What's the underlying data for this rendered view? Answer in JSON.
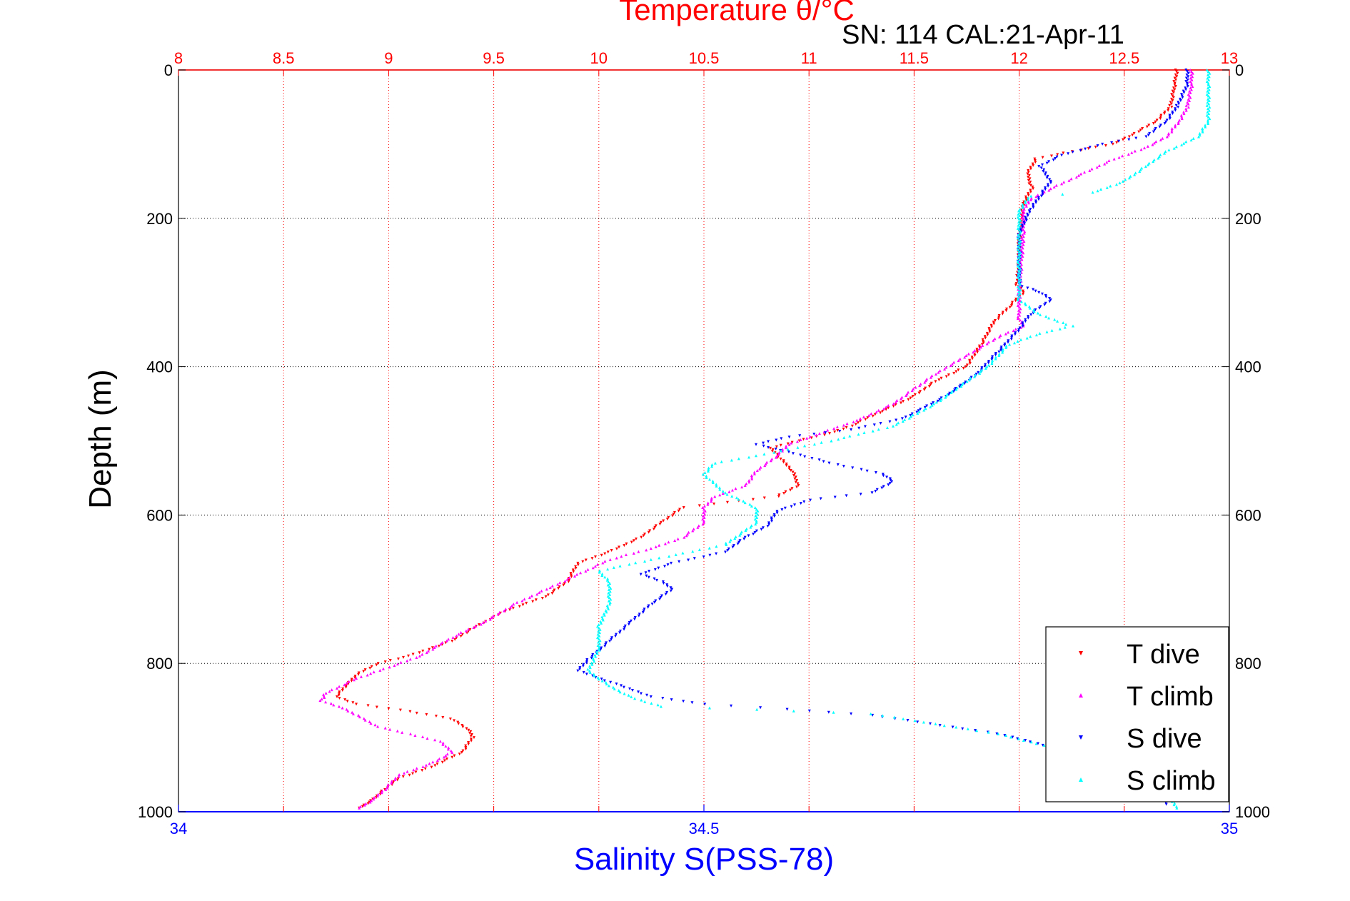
{
  "chart_data": {
    "type": "scatter",
    "title": "Temperature θ/°C",
    "subtitle": "SN: 114  CAL:21-Apr-11",
    "xlabel": "Salinity S(PSS-78)",
    "ylabel": "Depth (m)",
    "temperature_axis": {
      "range": [
        8,
        13
      ],
      "ticks": [
        "8",
        "8.5",
        "9",
        "9.5",
        "10",
        "10.5",
        "11",
        "11.5",
        "12",
        "12.5",
        "13"
      ],
      "color": "#ff0000"
    },
    "salinity_axis": {
      "range": [
        34,
        35
      ],
      "ticks": [
        "34",
        "34.5",
        "35"
      ],
      "color": "#0000ff"
    },
    "depth_axis": {
      "range": [
        0,
        1000
      ],
      "inverted": true,
      "ticks": [
        "0",
        "200",
        "400",
        "600",
        "800",
        "1000"
      ]
    },
    "grid": true,
    "legend_position": "bottom-right",
    "series": [
      {
        "name": "T dive",
        "axis": "temperature",
        "color": "#ff0000",
        "marker": "triangle-down",
        "points": [
          [
            12.75,
            0
          ],
          [
            12.74,
            20
          ],
          [
            12.72,
            50
          ],
          [
            12.65,
            70
          ],
          [
            12.52,
            90
          ],
          [
            12.45,
            100
          ],
          [
            12.25,
            110
          ],
          [
            12.08,
            120
          ],
          [
            12.04,
            140
          ],
          [
            12.06,
            160
          ],
          [
            12.02,
            180
          ],
          [
            12.01,
            200
          ],
          [
            12.0,
            230
          ],
          [
            12.0,
            260
          ],
          [
            11.99,
            290
          ],
          [
            12.02,
            300
          ],
          [
            11.95,
            320
          ],
          [
            11.88,
            340
          ],
          [
            11.82,
            370
          ],
          [
            11.75,
            400
          ],
          [
            11.6,
            420
          ],
          [
            11.5,
            440
          ],
          [
            11.35,
            460
          ],
          [
            11.2,
            480
          ],
          [
            11.1,
            490
          ],
          [
            10.95,
            500
          ],
          [
            10.82,
            510
          ],
          [
            10.85,
            520
          ],
          [
            10.92,
            540
          ],
          [
            10.95,
            560
          ],
          [
            10.85,
            575
          ],
          [
            10.55,
            585
          ],
          [
            10.4,
            590
          ],
          [
            10.3,
            610
          ],
          [
            10.2,
            630
          ],
          [
            10.05,
            650
          ],
          [
            9.9,
            665
          ],
          [
            9.85,
            690
          ],
          [
            9.75,
            710
          ],
          [
            9.55,
            730
          ],
          [
            9.42,
            750
          ],
          [
            9.3,
            770
          ],
          [
            9.1,
            790
          ],
          [
            8.95,
            800
          ],
          [
            8.85,
            815
          ],
          [
            8.8,
            830
          ],
          [
            8.75,
            845
          ],
          [
            8.85,
            855
          ],
          [
            9.1,
            865
          ],
          [
            9.3,
            875
          ],
          [
            9.38,
            890
          ],
          [
            9.4,
            900
          ],
          [
            9.35,
            920
          ],
          [
            9.2,
            940
          ],
          [
            9.05,
            955
          ],
          [
            8.98,
            970
          ],
          [
            8.92,
            985
          ],
          [
            8.86,
            995
          ]
        ]
      },
      {
        "name": "T climb",
        "axis": "temperature",
        "color": "#ff00ff",
        "marker": "triangle-up",
        "points": [
          [
            12.82,
            0
          ],
          [
            12.82,
            20
          ],
          [
            12.8,
            50
          ],
          [
            12.76,
            70
          ],
          [
            12.7,
            90
          ],
          [
            12.6,
            105
          ],
          [
            12.45,
            120
          ],
          [
            12.3,
            140
          ],
          [
            12.15,
            160
          ],
          [
            12.05,
            175
          ],
          [
            12.02,
            190
          ],
          [
            12.02,
            220
          ],
          [
            12.01,
            260
          ],
          [
            12.0,
            300
          ],
          [
            12.0,
            335
          ],
          [
            12.02,
            345
          ],
          [
            11.9,
            360
          ],
          [
            11.75,
            385
          ],
          [
            11.6,
            410
          ],
          [
            11.5,
            430
          ],
          [
            11.4,
            450
          ],
          [
            11.25,
            470
          ],
          [
            11.05,
            490
          ],
          [
            10.9,
            505
          ],
          [
            10.85,
            520
          ],
          [
            10.75,
            540
          ],
          [
            10.7,
            560
          ],
          [
            10.55,
            575
          ],
          [
            10.5,
            590
          ],
          [
            10.5,
            610
          ],
          [
            10.4,
            630
          ],
          [
            10.25,
            645
          ],
          [
            10.05,
            660
          ],
          [
            9.9,
            680
          ],
          [
            9.75,
            700
          ],
          [
            9.6,
            720
          ],
          [
            9.45,
            745
          ],
          [
            9.3,
            765
          ],
          [
            9.15,
            790
          ],
          [
            9.0,
            805
          ],
          [
            8.85,
            820
          ],
          [
            8.7,
            840
          ],
          [
            8.68,
            850
          ],
          [
            8.78,
            860
          ],
          [
            8.85,
            870
          ],
          [
            8.95,
            885
          ],
          [
            9.1,
            895
          ],
          [
            9.25,
            905
          ],
          [
            9.3,
            920
          ],
          [
            9.2,
            935
          ],
          [
            9.05,
            950
          ],
          [
            8.98,
            970
          ],
          [
            8.92,
            985
          ],
          [
            8.86,
            995
          ]
        ]
      },
      {
        "name": "S dive",
        "axis": "salinity",
        "color": "#0000ff",
        "marker": "triangle-down",
        "points": [
          [
            34.96,
            0
          ],
          [
            34.96,
            20
          ],
          [
            34.95,
            50
          ],
          [
            34.94,
            70
          ],
          [
            34.92,
            90
          ],
          [
            34.88,
            100
          ],
          [
            34.84,
            115
          ],
          [
            34.82,
            130
          ],
          [
            34.83,
            150
          ],
          [
            34.82,
            170
          ],
          [
            34.81,
            190
          ],
          [
            34.8,
            220
          ],
          [
            34.8,
            260
          ],
          [
            34.8,
            290
          ],
          [
            34.82,
            300
          ],
          [
            34.83,
            310
          ],
          [
            34.81,
            330
          ],
          [
            34.8,
            350
          ],
          [
            34.78,
            380
          ],
          [
            34.76,
            410
          ],
          [
            34.73,
            440
          ],
          [
            34.69,
            470
          ],
          [
            34.64,
            485
          ],
          [
            34.58,
            495
          ],
          [
            34.55,
            505
          ],
          [
            34.58,
            515
          ],
          [
            34.62,
            530
          ],
          [
            34.67,
            545
          ],
          [
            34.68,
            555
          ],
          [
            34.66,
            570
          ],
          [
            34.6,
            580
          ],
          [
            34.57,
            595
          ],
          [
            34.56,
            615
          ],
          [
            34.54,
            630
          ],
          [
            34.52,
            650
          ],
          [
            34.47,
            665
          ],
          [
            34.44,
            680
          ],
          [
            34.46,
            690
          ],
          [
            34.47,
            700
          ],
          [
            34.45,
            720
          ],
          [
            34.43,
            745
          ],
          [
            34.41,
            770
          ],
          [
            34.39,
            795
          ],
          [
            34.38,
            810
          ],
          [
            34.42,
            830
          ],
          [
            34.45,
            845
          ],
          [
            34.5,
            855
          ],
          [
            34.58,
            862
          ],
          [
            34.66,
            870
          ],
          [
            34.78,
            895
          ],
          [
            34.88,
            930
          ],
          [
            34.94,
            970
          ],
          [
            34.94,
            990
          ]
        ]
      },
      {
        "name": "S climb",
        "axis": "salinity",
        "color": "#00ffff",
        "marker": "triangle-up",
        "points": [
          [
            34.98,
            0
          ],
          [
            34.98,
            20
          ],
          [
            34.98,
            50
          ],
          [
            34.98,
            70
          ],
          [
            34.97,
            90
          ],
          [
            34.94,
            110
          ],
          [
            34.92,
            130
          ],
          [
            34.9,
            150
          ],
          [
            34.87,
            165
          ],
          [
            34.81,
            170
          ],
          [
            34.8,
            190
          ],
          [
            34.8,
            220
          ],
          [
            34.8,
            260
          ],
          [
            34.8,
            290
          ],
          [
            34.8,
            310
          ],
          [
            34.82,
            330
          ],
          [
            34.85,
            345
          ],
          [
            34.82,
            355
          ],
          [
            34.79,
            370
          ],
          [
            34.77,
            400
          ],
          [
            34.75,
            420
          ],
          [
            34.72,
            450
          ],
          [
            34.68,
            480
          ],
          [
            34.62,
            500
          ],
          [
            34.55,
            520
          ],
          [
            34.51,
            530
          ],
          [
            34.5,
            545
          ],
          [
            34.52,
            570
          ],
          [
            34.55,
            590
          ],
          [
            34.55,
            610
          ],
          [
            34.52,
            640
          ],
          [
            34.45,
            660
          ],
          [
            34.4,
            675
          ],
          [
            34.41,
            690
          ],
          [
            34.41,
            720
          ],
          [
            34.4,
            750
          ],
          [
            34.4,
            780
          ],
          [
            34.39,
            810
          ],
          [
            34.41,
            830
          ],
          [
            34.43,
            845
          ],
          [
            34.46,
            858
          ],
          [
            34.55,
            862
          ],
          [
            34.66,
            868
          ],
          [
            34.78,
            895
          ],
          [
            34.88,
            930
          ],
          [
            34.94,
            975
          ],
          [
            34.95,
            995
          ]
        ]
      }
    ]
  }
}
